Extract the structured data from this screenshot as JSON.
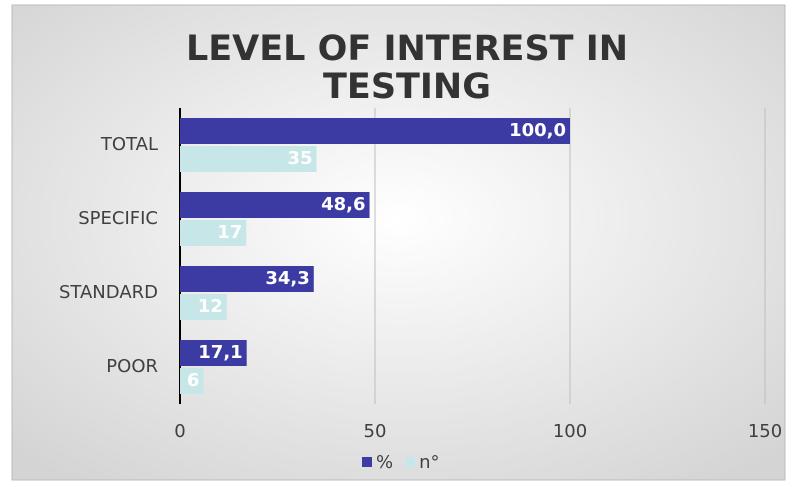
{
  "chart_data": {
    "type": "hbar",
    "title": "LEVEL OF INTEREST IN TESTING",
    "categories": [
      "TOTAL",
      "SPECIFIC",
      "STANDARD",
      "POOR"
    ],
    "series": [
      {
        "name": "%",
        "color": "#3c3aa3",
        "values": [
          100.0,
          48.6,
          34.3,
          17.1
        ],
        "value_labels": [
          "100,0",
          "48,6",
          "34,3",
          "17,1"
        ]
      },
      {
        "name": "n°",
        "color": "#c6e6e8",
        "values": [
          35,
          17,
          12,
          6
        ]
      }
    ],
    "xlim": [
      0,
      150
    ],
    "xticks": [
      0,
      50,
      100,
      150
    ],
    "grid": true,
    "legend": "bottom"
  }
}
